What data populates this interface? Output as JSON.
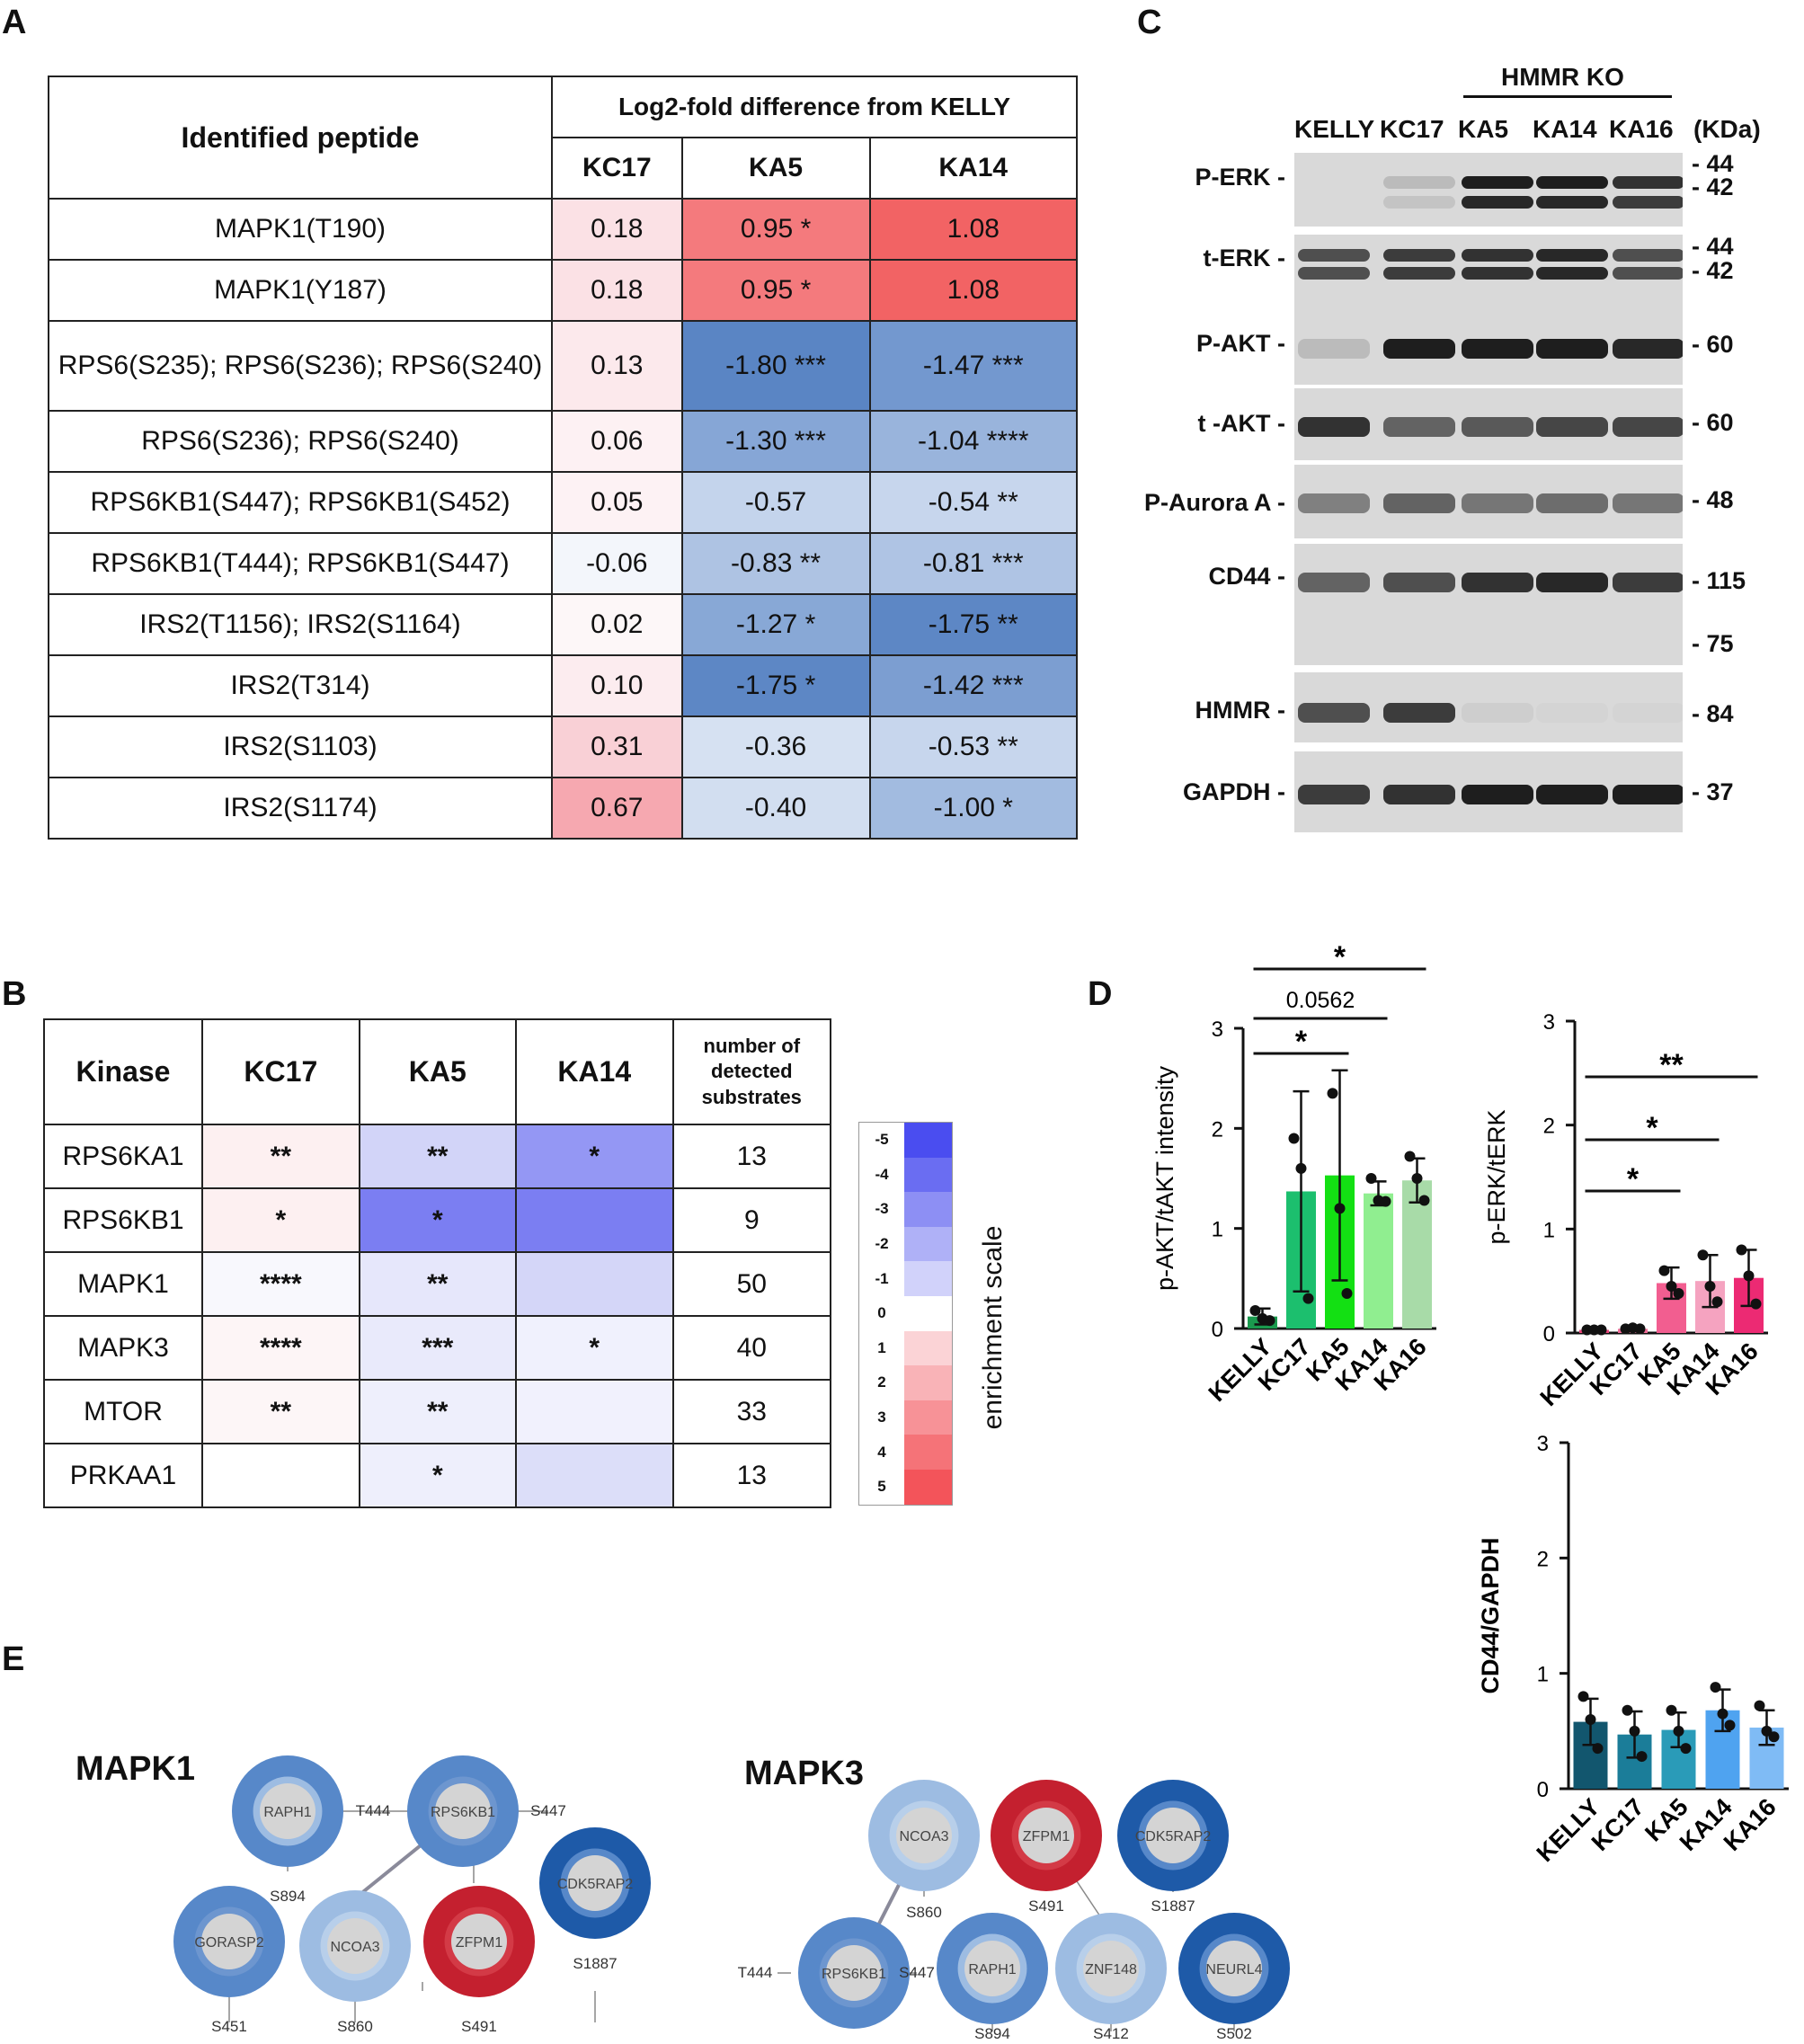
{
  "panels": {
    "a": "A",
    "b": "B",
    "c": "C",
    "d": "D",
    "e": "E"
  },
  "tableA": {
    "header_peptide": "Identified peptide",
    "header_group": "Log2-fold difference from KELLY",
    "columns": [
      "KC17",
      "KA5",
      "KA14"
    ],
    "rows": [
      {
        "peptide": "MAPK1(T190)",
        "kc17": "0.18",
        "ka5": "0.95 *",
        "ka14": "1.08",
        "c": [
          "#fbe1e5",
          "#f47a7d",
          "#f26364"
        ]
      },
      {
        "peptide": "MAPK1(Y187)",
        "kc17": "0.18",
        "ka5": "0.95 *",
        "ka14": "1.08",
        "c": [
          "#fbe1e5",
          "#f47a7d",
          "#f26364"
        ]
      },
      {
        "peptide": "RPS6(S235); RPS6(S236); RPS6(S240)",
        "kc17": "0.13",
        "ka5": "-1.80 ***",
        "ka14": "-1.47 ***",
        "c": [
          "#fce9ec",
          "#5a85c4",
          "#7398cf"
        ],
        "tall": true
      },
      {
        "peptide": "RPS6(S236); RPS6(S240)",
        "kc17": "0.06",
        "ka5": "-1.30 ***",
        "ka14": "-1.04 ****",
        "c": [
          "#fdf1f3",
          "#86a6d6",
          "#99b4dc"
        ]
      },
      {
        "peptide": "RPS6KB1(S447); RPS6KB1(S452)",
        "kc17": "0.05",
        "ka5": "-0.57",
        "ka14": "-0.54 **",
        "c": [
          "#fdf2f4",
          "#c4d4ec",
          "#c7d6ed"
        ]
      },
      {
        "peptide": "RPS6KB1(T444); RPS6KB1(S447)",
        "kc17": "-0.06",
        "ka5": "-0.83 **",
        "ka14": "-0.81 ***",
        "c": [
          "#f3f6fb",
          "#aec3e3",
          "#afc4e4"
        ]
      },
      {
        "peptide": "IRS2(T1156); IRS2(S1164)",
        "kc17": "0.02",
        "ka5": "-1.27 *",
        "ka14": "-1.75 **",
        "c": [
          "#fdf7f8",
          "#88a8d6",
          "#5d87c5"
        ]
      },
      {
        "peptide": "IRS2(T314)",
        "kc17": "0.10",
        "ka5": "-1.75 *",
        "ka14": "-1.42 ***",
        "c": [
          "#fcecef",
          "#5d87c5",
          "#7c9ed1"
        ]
      },
      {
        "peptide": "IRS2(S1103)",
        "kc17": "0.31",
        "ka5": "-0.36",
        "ka14": "-0.53 **",
        "c": [
          "#f9d0d6",
          "#d6e1f2",
          "#c7d6ed"
        ]
      },
      {
        "peptide": "IRS2(S1174)",
        "kc17": "0.67",
        "ka5": "-0.40",
        "ka14": "-1.00 *",
        "c": [
          "#f6a8b0",
          "#d2def0",
          "#a2bbe0"
        ]
      }
    ]
  },
  "tableB": {
    "header_kinase": "Kinase",
    "columns": [
      "KC17",
      "KA5",
      "KA14"
    ],
    "header_count": "number of detected substrates",
    "rows": [
      {
        "kinase": "RPS6KA1",
        "kc17": "**",
        "ka5": "**",
        "ka14": "*",
        "n": "13",
        "c": [
          "#fdf0f1",
          "#d2d4f8",
          "#9497f4"
        ]
      },
      {
        "kinase": "RPS6KB1",
        "kc17": "*",
        "ka5": "*",
        "ka14": "",
        "n": "9",
        "c": [
          "#fdf0f1",
          "#7b7ef2",
          "#7b7ef2"
        ]
      },
      {
        "kinase": "MAPK1",
        "kc17": "****",
        "ka5": "**",
        "ka14": "",
        "n": "50",
        "c": [
          "#f8f8fd",
          "#e6e7fb",
          "#d4d6f8"
        ]
      },
      {
        "kinase": "MAPK3",
        "kc17": "****",
        "ka5": "***",
        "ka14": "*",
        "n": "40",
        "c": [
          "#fdf5f6",
          "#e9eafb",
          "#f0f1fd"
        ]
      },
      {
        "kinase": "MTOR",
        "kc17": "**",
        "ka5": "**",
        "ka14": "",
        "n": "33",
        "c": [
          "#fdf6f7",
          "#eeeffc",
          "#f1f1fd"
        ]
      },
      {
        "kinase": "PRKAA1",
        "kc17": "",
        "ka5": "*",
        "ka14": "",
        "n": "13",
        "c": [
          "#ffffff",
          "#eeeffc",
          "#dcdef9"
        ]
      }
    ]
  },
  "scale": {
    "ticks": [
      "-5",
      "-4",
      "-3",
      "-2",
      "-1",
      "0",
      "1",
      "2",
      "3",
      "4",
      "5"
    ],
    "colors": [
      "#4a4df0",
      "#6a6df2",
      "#8d8ff4",
      "#afb1f7",
      "#d1d2fa",
      "#ffffff",
      "#fbd3d6",
      "#f9b3b7",
      "#f79297",
      "#f57378",
      "#f3545a"
    ],
    "label": "enrichment scale"
  },
  "blot": {
    "group_label": "HMMR KO",
    "lanes": [
      "KELLY",
      "KC17",
      "KA5",
      "KA14",
      "KA16"
    ],
    "unit": "(KDa)",
    "rows": [
      {
        "label": "P-ERK -",
        "markers": [
          "- 44",
          "- 42"
        ]
      },
      {
        "label": "t-ERK -",
        "markers": [
          "- 44",
          "- 42"
        ]
      },
      {
        "label": "P-AKT -",
        "markers": [
          "- 60"
        ]
      },
      {
        "label": "t -AKT -",
        "markers": [
          "- 60"
        ]
      },
      {
        "label": "P-Aurora A -",
        "markers": [
          "- 48"
        ]
      },
      {
        "label": "CD44 -",
        "markers": [
          "- 115",
          "- 75"
        ]
      },
      {
        "label": "HMMR -",
        "markers": [
          "- 84"
        ]
      },
      {
        "label": "GAPDH -",
        "markers": [
          "- 37"
        ]
      }
    ]
  },
  "chart_data": [
    {
      "type": "bar",
      "title": "",
      "ylabel": "p-AKT/tAKT intensity",
      "categories": [
        "KELLY",
        "KC17",
        "KA5",
        "KA14",
        "KA16"
      ],
      "values": [
        0.12,
        1.37,
        1.53,
        1.35,
        1.48
      ],
      "errors": [
        0.08,
        1.0,
        1.05,
        0.12,
        0.22
      ],
      "points": [
        [
          0.18,
          0.1,
          0.08
        ],
        [
          1.9,
          1.6,
          0.3
        ],
        [
          2.35,
          1.2,
          0.35
        ],
        [
          1.5,
          1.28,
          1.27
        ],
        [
          1.72,
          1.5,
          1.28
        ]
      ],
      "colors": [
        "#1a9a4e",
        "#1cbf6e",
        "#13e013",
        "#90ee90",
        "#a8dba8"
      ],
      "ylim": [
        0,
        3
      ],
      "yticks": [
        "0",
        "1",
        "2",
        "3"
      ],
      "annotations": [
        {
          "from": "KELLY",
          "to": "KA16",
          "text": "*"
        },
        {
          "from": "KELLY",
          "to": "KA14",
          "text": "0.0562"
        },
        {
          "from": "KELLY",
          "to": "KA5",
          "text": "*"
        }
      ]
    },
    {
      "type": "bar",
      "title": "",
      "ylabel": "p-ERK/tERK",
      "categories": [
        "KELLY",
        "KC17",
        "KA5",
        "KA14",
        "KA16"
      ],
      "values": [
        0.03,
        0.04,
        0.48,
        0.5,
        0.53
      ],
      "errors": [
        0.01,
        0.01,
        0.15,
        0.25,
        0.27
      ],
      "points": [
        [
          0.03,
          0.03,
          0.03
        ],
        [
          0.04,
          0.05,
          0.04
        ],
        [
          0.6,
          0.45,
          0.38
        ],
        [
          0.75,
          0.45,
          0.3
        ],
        [
          0.8,
          0.55,
          0.28
        ]
      ],
      "colors": [
        "#e8457a",
        "#ee6c97",
        "#f25e90",
        "#f5a3c0",
        "#ec2a73"
      ],
      "ylim": [
        0,
        3
      ],
      "yticks": [
        "0",
        "1",
        "2",
        "3"
      ],
      "annotations": [
        {
          "from": "KELLY",
          "to": "KA16",
          "text": "**"
        },
        {
          "from": "KELLY",
          "to": "KA14",
          "text": "*"
        },
        {
          "from": "KELLY",
          "to": "KA5",
          "text": "*"
        }
      ]
    },
    {
      "type": "bar",
      "title": "",
      "ylabel": "CD44/GAPDH",
      "categories": [
        "KELLY",
        "KC17",
        "KA5",
        "KA14",
        "KA16"
      ],
      "values": [
        0.58,
        0.47,
        0.51,
        0.68,
        0.53
      ],
      "errors": [
        0.2,
        0.2,
        0.15,
        0.18,
        0.15
      ],
      "points": [
        [
          0.8,
          0.6,
          0.35
        ],
        [
          0.68,
          0.5,
          0.28
        ],
        [
          0.68,
          0.5,
          0.35
        ],
        [
          0.88,
          0.65,
          0.55
        ],
        [
          0.72,
          0.5,
          0.45
        ]
      ],
      "colors": [
        "#12566e",
        "#1b7d99",
        "#2a9bb8",
        "#4fa3f0",
        "#7fbbf5"
      ],
      "ylim": [
        0,
        3
      ],
      "yticks": [
        "0",
        "1",
        "2",
        "3"
      ],
      "annotations": []
    }
  ],
  "networks": {
    "mapk1": {
      "title": "MAPK1",
      "nodes": [
        "RAPH1",
        "RPS6KB1",
        "CDK5RAP2",
        "GORASP2",
        "NCOA3",
        "ZFPM1"
      ],
      "sites": [
        "T444",
        "S447",
        "S894",
        "S1887",
        "S451",
        "S860",
        "S491"
      ]
    },
    "mapk3": {
      "title": "MAPK3",
      "nodes": [
        "NCOA3",
        "ZFPM1",
        "CDK5RAP2",
        "RPS6KB1",
        "RAPH1",
        "ZNF148",
        "NEURL4"
      ],
      "sites": [
        "S860",
        "S491",
        "S1887",
        "T444",
        "S447",
        "S894",
        "S412",
        "S502"
      ]
    }
  }
}
